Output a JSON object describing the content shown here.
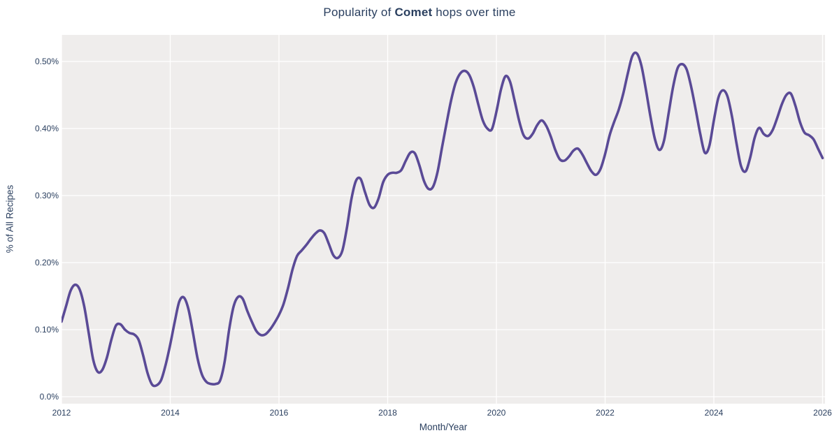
{
  "title": {
    "prefix": "Popularity of ",
    "bold": "Comet",
    "suffix": " hops over time"
  },
  "colors": {
    "line": "#5a4a96",
    "plot_background": "#efedec",
    "page_background": "#ffffff",
    "gridline": "#ffffff",
    "text": "#2a3f5f"
  },
  "chart_data": {
    "type": "line",
    "title": "Popularity of Comet hops over time",
    "xlabel": "Month/Year",
    "ylabel": "% of All Recipes",
    "x_ticks": [
      "2012",
      "2014",
      "2016",
      "2018",
      "2020",
      "2022",
      "2024",
      "2026"
    ],
    "y_ticks": [
      "0.0%",
      "0.10%",
      "0.20%",
      "0.30%",
      "0.40%",
      "0.50%"
    ],
    "x_range_years": [
      2012,
      2026.05
    ],
    "y_range_pct": [
      -0.01,
      0.54
    ],
    "grid": true,
    "legend": false,
    "series": [
      {
        "name": "Comet",
        "color": "#5a4a96",
        "start_year": 2012,
        "points_per_year": 12,
        "unit": "% of all recipes",
        "values_pct": [
          0.112,
          0.135,
          0.158,
          0.167,
          0.16,
          0.135,
          0.095,
          0.055,
          0.037,
          0.04,
          0.058,
          0.085,
          0.106,
          0.108,
          0.1,
          0.095,
          0.093,
          0.085,
          0.062,
          0.035,
          0.018,
          0.017,
          0.025,
          0.048,
          0.078,
          0.112,
          0.142,
          0.148,
          0.131,
          0.096,
          0.058,
          0.033,
          0.022,
          0.019,
          0.019,
          0.024,
          0.052,
          0.1,
          0.135,
          0.149,
          0.146,
          0.128,
          0.112,
          0.098,
          0.092,
          0.093,
          0.1,
          0.11,
          0.122,
          0.138,
          0.162,
          0.19,
          0.21,
          0.218,
          0.226,
          0.235,
          0.243,
          0.248,
          0.244,
          0.228,
          0.211,
          0.207,
          0.218,
          0.252,
          0.295,
          0.322,
          0.325,
          0.305,
          0.286,
          0.282,
          0.296,
          0.32,
          0.331,
          0.334,
          0.334,
          0.338,
          0.352,
          0.364,
          0.363,
          0.345,
          0.322,
          0.31,
          0.313,
          0.335,
          0.372,
          0.408,
          0.442,
          0.468,
          0.482,
          0.486,
          0.48,
          0.462,
          0.436,
          0.412,
          0.4,
          0.399,
          0.425,
          0.458,
          0.478,
          0.47,
          0.442,
          0.412,
          0.39,
          0.385,
          0.392,
          0.405,
          0.412,
          0.404,
          0.388,
          0.368,
          0.354,
          0.352,
          0.358,
          0.367,
          0.37,
          0.361,
          0.348,
          0.336,
          0.331,
          0.34,
          0.362,
          0.39,
          0.41,
          0.428,
          0.452,
          0.482,
          0.508,
          0.512,
          0.494,
          0.458,
          0.418,
          0.384,
          0.368,
          0.382,
          0.422,
          0.462,
          0.49,
          0.496,
          0.488,
          0.462,
          0.428,
          0.392,
          0.364,
          0.374,
          0.412,
          0.446,
          0.457,
          0.448,
          0.418,
          0.378,
          0.344,
          0.336,
          0.356,
          0.386,
          0.401,
          0.392,
          0.389,
          0.398,
          0.416,
          0.436,
          0.45,
          0.452,
          0.434,
          0.41,
          0.394,
          0.39,
          0.384,
          0.37,
          0.356
        ]
      }
    ]
  }
}
